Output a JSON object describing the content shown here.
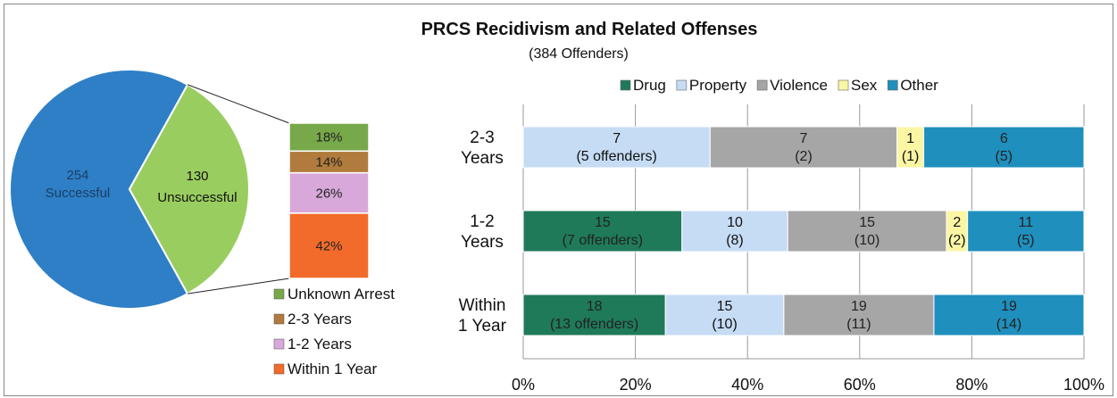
{
  "chart_data": [
    {
      "type": "pie",
      "slices": [
        {
          "name": "Successful",
          "value": 254,
          "color": "#2e7fc6"
        },
        {
          "name": "Unsuccessful",
          "value": 130,
          "color": "#9acd5f"
        }
      ]
    },
    {
      "type": "bar",
      "stacked": true,
      "categories": [
        "Unknown Arrest",
        "2-3 Years",
        "1-2 Years",
        "Within 1 Year"
      ],
      "values": [
        18,
        14,
        26,
        42
      ],
      "labels": [
        "18%",
        "14%",
        "26%",
        "42%"
      ],
      "colors": [
        "#77a84a",
        "#b07b3c",
        "#d7a8d9",
        "#f26b2a"
      ],
      "legend": [
        "Unknown Arrest",
        "2-3 Years",
        "1-2 Years",
        "Within 1 Year"
      ]
    },
    {
      "type": "bar",
      "orientation": "horizontal",
      "stacked": "percent",
      "title": "PRCS Recidivism and Related Offenses",
      "subtitle": "(384 Offenders)",
      "categories": [
        [
          "2-3",
          "Years"
        ],
        [
          "1-2",
          "Years"
        ],
        [
          "Within",
          "1 Year"
        ]
      ],
      "series": [
        {
          "name": "Drug",
          "color": "#1f7a5a",
          "values": [
            0,
            15,
            18
          ],
          "labels": [
            [
              "",
              ""
            ],
            [
              "15",
              "(7 offenders)"
            ],
            [
              "18",
              "(13 offenders)"
            ]
          ]
        },
        {
          "name": "Property",
          "color": "#c6dcf5",
          "values": [
            7,
            10,
            15
          ],
          "labels": [
            [
              "7",
              "(5 offenders)"
            ],
            [
              "10",
              "(8)"
            ],
            [
              "15",
              "(10)"
            ]
          ]
        },
        {
          "name": "Violence",
          "color": "#a6a6a6",
          "values": [
            7,
            15,
            19
          ],
          "labels": [
            [
              "7",
              "(2)"
            ],
            [
              "15",
              "(10)"
            ],
            [
              "19",
              "(11)"
            ]
          ]
        },
        {
          "name": "Sex",
          "color": "#fbf6a4",
          "values": [
            1,
            2,
            0
          ],
          "labels": [
            [
              "1",
              "(1)"
            ],
            [
              "2",
              "(2)"
            ],
            [
              "",
              ""
            ]
          ]
        },
        {
          "name": "Other",
          "color": "#1f8fbd",
          "values": [
            6,
            11,
            19
          ],
          "labels": [
            [
              "6",
              "(5)"
            ],
            [
              "11",
              "(5)"
            ],
            [
              "19",
              "(14)"
            ]
          ]
        }
      ],
      "xlim": [
        0,
        100
      ],
      "xticks": [
        "0%",
        "20%",
        "40%",
        "60%",
        "80%",
        "100%"
      ],
      "grid": true,
      "legend_position": "top"
    }
  ]
}
